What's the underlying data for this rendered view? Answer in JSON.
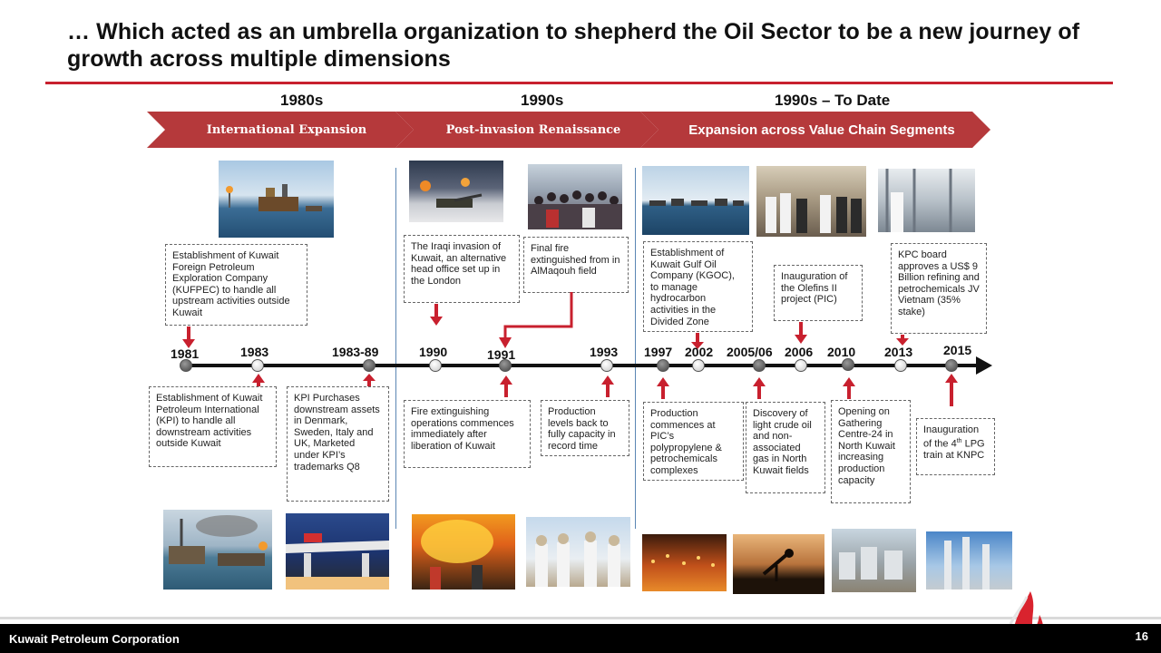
{
  "slide": {
    "title": "… Which acted as an umbrella organization to shepherd the Oil Sector to be a new journey of growth across multiple dimensions",
    "page_number": "16",
    "footer": "Kuwait Petroleum Corporation"
  },
  "eras": [
    {
      "label": "1980s",
      "phase": "International Expansion"
    },
    {
      "label": "1990s",
      "phase": "Post-invasion Renaissance"
    },
    {
      "label": "1990s – To Date",
      "phase": "Expansion across Value Chain Segments"
    }
  ],
  "timeline": {
    "years": [
      "1981",
      "1983",
      "1983-89",
      "1990",
      "1991",
      "1993",
      "1997",
      "2002",
      "2005/06",
      "2006",
      "2010",
      "2013",
      "2015"
    ]
  },
  "events_top": [
    {
      "text": "Establishment of Kuwait Foreign Petroleum Exploration Company (KUFPEC) to handle all upstream activities outside Kuwait"
    },
    {
      "text": "The Iraqi invasion of Kuwait, an alternative head office set up in the London"
    },
    {
      "text": "Final fire extinguished from in AlMaqouh field"
    },
    {
      "text": "Establishment of Kuwait Gulf Oil Company (KGOC), to manage hydrocarbon activities in the Divided Zone"
    },
    {
      "text": "Inauguration of the Olefins II project (PIC)"
    },
    {
      "text": "KPC board approves a US$ 9 Billion refining and petrochemicals JV Vietnam (35% stake)"
    }
  ],
  "events_bottom": [
    {
      "text": "Establishment of Kuwait Petroleum International (KPI) to handle  all downstream activities outside Kuwait"
    },
    {
      "text": "KPI Purchases downstream assets in Denmark, Sweden, Italy and UK, Marketed under KPI’s trademarks Q8"
    },
    {
      "text": "Fire extinguishing operations commences immediately after liberation of Kuwait"
    },
    {
      "text": "Production levels back to fully capacity in record time"
    },
    {
      "text": "Production commences at PIC’s polypropylene & petrochemicals complexes"
    },
    {
      "text": "Discovery of light crude oil and non-associated gas in North Kuwait fields"
    },
    {
      "text": "Opening on Gathering Centre-24 in North Kuwait increasing production capacity"
    },
    {
      "text_pre": "Inauguration of the 4",
      "text_sup": "th",
      "text_post": " LPG train at KNPC"
    }
  ],
  "colors": {
    "accent_red": "#c8202e",
    "chevron": "#b5393b",
    "divider_blue": "#5a86b3"
  }
}
